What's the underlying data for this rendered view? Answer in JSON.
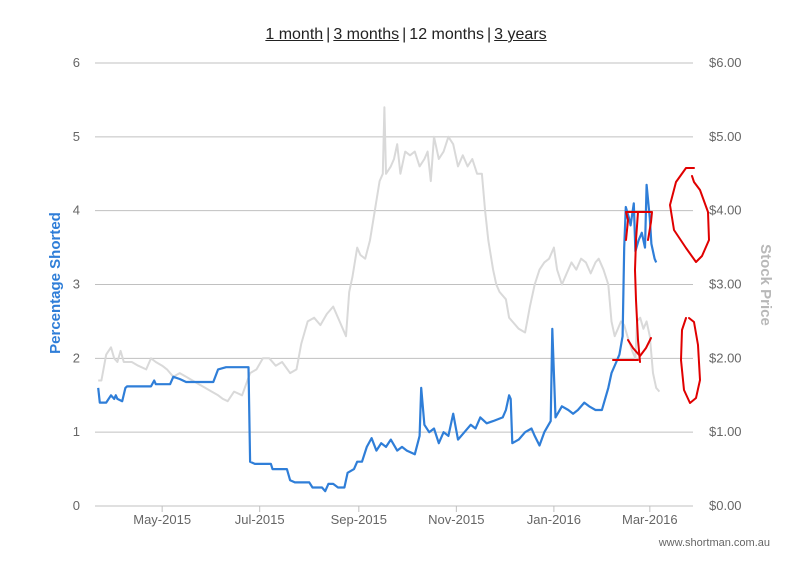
{
  "range_selector": {
    "options": [
      {
        "label": "1 month",
        "active": false
      },
      {
        "label": "3 months",
        "active": false
      },
      {
        "label": "12 months",
        "active": true
      },
      {
        "label": "3 years",
        "active": false
      }
    ],
    "separator": "|"
  },
  "credit": "www.shortman.com.au",
  "colors": {
    "short_series": "#2f7ed8",
    "price_series": "#d9d9d9",
    "annotation": "#e00000",
    "grid": "#c0c0c0"
  },
  "chart_data": {
    "type": "line",
    "left_axis": {
      "label": "Percentage Shorted",
      "min": 0,
      "max": 6,
      "ticks": [
        {
          "value": 0,
          "label": "0"
        },
        {
          "value": 1,
          "label": "1"
        },
        {
          "value": 2,
          "label": "2"
        },
        {
          "value": 3,
          "label": "3"
        },
        {
          "value": 4,
          "label": "4"
        },
        {
          "value": 5,
          "label": "5"
        },
        {
          "value": 6,
          "label": "6"
        }
      ]
    },
    "right_axis": {
      "label": "Stock Price",
      "min": 0,
      "max": 6,
      "ticks": [
        {
          "value": 0,
          "label": "$0.00"
        },
        {
          "value": 1,
          "label": "$1.00"
        },
        {
          "value": 2,
          "label": "$2.00"
        },
        {
          "value": 3,
          "label": "$3.00"
        },
        {
          "value": 4,
          "label": "$4.00"
        },
        {
          "value": 5,
          "label": "$5.00"
        },
        {
          "value": 6,
          "label": "$6.00"
        }
      ]
    },
    "x_axis": {
      "min": "2015-03-20",
      "max": "2016-03-28",
      "ticks": [
        {
          "date": "2015-05-01",
          "label": "May-2015"
        },
        {
          "date": "2015-07-01",
          "label": "Jul-2015"
        },
        {
          "date": "2015-09-01",
          "label": "Sep-2015"
        },
        {
          "date": "2015-11-01",
          "label": "Nov-2015"
        },
        {
          "date": "2016-01-01",
          "label": "Jan-2016"
        },
        {
          "date": "2016-03-01",
          "label": "Mar-2016"
        }
      ]
    },
    "grid": "horizontal",
    "series": [
      {
        "key": "short",
        "axis": "left",
        "points": [
          [
            "2015-03-22",
            1.6
          ],
          [
            "2015-03-23",
            1.4
          ],
          [
            "2015-03-27",
            1.4
          ],
          [
            "2015-03-30",
            1.5
          ],
          [
            "2015-04-01",
            1.45
          ],
          [
            "2015-04-02",
            1.5
          ],
          [
            "2015-04-03",
            1.45
          ],
          [
            "2015-04-06",
            1.42
          ],
          [
            "2015-04-08",
            1.6
          ],
          [
            "2015-04-09",
            1.62
          ],
          [
            "2015-04-24",
            1.62
          ],
          [
            "2015-04-26",
            1.7
          ],
          [
            "2015-04-27",
            1.65
          ],
          [
            "2015-05-01",
            1.65
          ],
          [
            "2015-05-06",
            1.65
          ],
          [
            "2015-05-08",
            1.75
          ],
          [
            "2015-05-12",
            1.72
          ],
          [
            "2015-05-16",
            1.68
          ],
          [
            "2015-06-02",
            1.68
          ],
          [
            "2015-06-05",
            1.85
          ],
          [
            "2015-06-10",
            1.88
          ],
          [
            "2015-06-24",
            1.88
          ],
          [
            "2015-06-25",
            0.6
          ],
          [
            "2015-06-28",
            0.57
          ],
          [
            "2015-07-08",
            0.57
          ],
          [
            "2015-07-09",
            0.5
          ],
          [
            "2015-07-18",
            0.5
          ],
          [
            "2015-07-20",
            0.35
          ],
          [
            "2015-07-23",
            0.32
          ],
          [
            "2015-08-01",
            0.32
          ],
          [
            "2015-08-03",
            0.25
          ],
          [
            "2015-08-09",
            0.25
          ],
          [
            "2015-08-11",
            0.2
          ],
          [
            "2015-08-13",
            0.3
          ],
          [
            "2015-08-16",
            0.3
          ],
          [
            "2015-08-19",
            0.25
          ],
          [
            "2015-08-23",
            0.25
          ],
          [
            "2015-08-25",
            0.45
          ],
          [
            "2015-08-29",
            0.5
          ],
          [
            "2015-08-31",
            0.6
          ],
          [
            "2015-09-03",
            0.6
          ],
          [
            "2015-09-06",
            0.8
          ],
          [
            "2015-09-09",
            0.92
          ],
          [
            "2015-09-12",
            0.75
          ],
          [
            "2015-09-15",
            0.85
          ],
          [
            "2015-09-18",
            0.8
          ],
          [
            "2015-09-21",
            0.9
          ],
          [
            "2015-09-25",
            0.75
          ],
          [
            "2015-09-28",
            0.8
          ],
          [
            "2015-10-01",
            0.75
          ],
          [
            "2015-10-06",
            0.7
          ],
          [
            "2015-10-09",
            0.95
          ],
          [
            "2015-10-10",
            1.6
          ],
          [
            "2015-10-12",
            1.1
          ],
          [
            "2015-10-15",
            1.0
          ],
          [
            "2015-10-18",
            1.05
          ],
          [
            "2015-10-21",
            0.85
          ],
          [
            "2015-10-24",
            1.0
          ],
          [
            "2015-10-27",
            0.95
          ],
          [
            "2015-10-30",
            1.25
          ],
          [
            "2015-11-02",
            0.9
          ],
          [
            "2015-11-06",
            1.0
          ],
          [
            "2015-11-10",
            1.1
          ],
          [
            "2015-11-13",
            1.05
          ],
          [
            "2015-11-16",
            1.2
          ],
          [
            "2015-11-20",
            1.12
          ],
          [
            "2015-11-24",
            1.15
          ],
          [
            "2015-11-30",
            1.2
          ],
          [
            "2015-12-02",
            1.3
          ],
          [
            "2015-12-04",
            1.5
          ],
          [
            "2015-12-05",
            1.45
          ],
          [
            "2015-12-06",
            0.85
          ],
          [
            "2015-12-10",
            0.9
          ],
          [
            "2015-12-14",
            1.0
          ],
          [
            "2015-12-18",
            1.05
          ],
          [
            "2015-12-20",
            0.95
          ],
          [
            "2015-12-23",
            0.82
          ],
          [
            "2015-12-26",
            1.0
          ],
          [
            "2015-12-30",
            1.15
          ],
          [
            "2015-12-31",
            2.4
          ],
          [
            "2016-01-02",
            1.2
          ],
          [
            "2016-01-06",
            1.35
          ],
          [
            "2016-01-10",
            1.3
          ],
          [
            "2016-01-13",
            1.25
          ],
          [
            "2016-01-16",
            1.3
          ],
          [
            "2016-01-20",
            1.4
          ],
          [
            "2016-01-23",
            1.35
          ],
          [
            "2016-01-27",
            1.3
          ],
          [
            "2016-01-31",
            1.3
          ],
          [
            "2016-02-02",
            1.45
          ],
          [
            "2016-02-04",
            1.6
          ],
          [
            "2016-02-06",
            1.8
          ],
          [
            "2016-02-09",
            1.95
          ],
          [
            "2016-02-11",
            2.05
          ],
          [
            "2016-02-13",
            2.3
          ],
          [
            "2016-02-14",
            3.5
          ],
          [
            "2016-02-15",
            4.05
          ],
          [
            "2016-02-17",
            3.9
          ],
          [
            "2016-02-18",
            3.8
          ],
          [
            "2016-02-20",
            4.1
          ],
          [
            "2016-02-21",
            3.45
          ],
          [
            "2016-02-23",
            3.6
          ],
          [
            "2016-02-25",
            3.7
          ],
          [
            "2016-02-27",
            3.5
          ],
          [
            "2016-02-28",
            4.35
          ],
          [
            "2016-03-01",
            3.9
          ],
          [
            "2016-03-02",
            3.55
          ],
          [
            "2016-03-04",
            3.35
          ],
          [
            "2016-03-05",
            3.3
          ]
        ]
      },
      {
        "key": "price",
        "axis": "right",
        "points": [
          [
            "2015-03-22",
            1.7
          ],
          [
            "2015-03-24",
            1.7
          ],
          [
            "2015-03-27",
            2.05
          ],
          [
            "2015-03-30",
            2.15
          ],
          [
            "2015-04-01",
            2.0
          ],
          [
            "2015-04-03",
            1.95
          ],
          [
            "2015-04-05",
            2.1
          ],
          [
            "2015-04-07",
            1.95
          ],
          [
            "2015-04-12",
            1.95
          ],
          [
            "2015-04-16",
            1.9
          ],
          [
            "2015-04-21",
            1.85
          ],
          [
            "2015-04-24",
            2.0
          ],
          [
            "2015-04-27",
            1.95
          ],
          [
            "2015-05-01",
            1.9
          ],
          [
            "2015-05-04",
            1.85
          ],
          [
            "2015-05-08",
            1.75
          ],
          [
            "2015-05-12",
            1.8
          ],
          [
            "2015-05-16",
            1.75
          ],
          [
            "2015-05-20",
            1.7
          ],
          [
            "2015-05-24",
            1.65
          ],
          [
            "2015-05-28",
            1.6
          ],
          [
            "2015-06-01",
            1.55
          ],
          [
            "2015-06-05",
            1.5
          ],
          [
            "2015-06-08",
            1.45
          ],
          [
            "2015-06-11",
            1.42
          ],
          [
            "2015-06-15",
            1.55
          ],
          [
            "2015-06-20",
            1.5
          ],
          [
            "2015-06-25",
            1.8
          ],
          [
            "2015-06-29",
            1.85
          ],
          [
            "2015-07-03",
            2.0
          ],
          [
            "2015-07-07",
            2.0
          ],
          [
            "2015-07-11",
            1.9
          ],
          [
            "2015-07-15",
            1.95
          ],
          [
            "2015-07-20",
            1.8
          ],
          [
            "2015-07-24",
            1.85
          ],
          [
            "2015-07-27",
            2.2
          ],
          [
            "2015-07-31",
            2.5
          ],
          [
            "2015-08-04",
            2.55
          ],
          [
            "2015-08-08",
            2.45
          ],
          [
            "2015-08-12",
            2.6
          ],
          [
            "2015-08-16",
            2.7
          ],
          [
            "2015-08-20",
            2.5
          ],
          [
            "2015-08-24",
            2.3
          ],
          [
            "2015-08-26",
            2.9
          ],
          [
            "2015-08-28",
            3.1
          ],
          [
            "2015-08-31",
            3.5
          ],
          [
            "2015-09-02",
            3.4
          ],
          [
            "2015-09-05",
            3.35
          ],
          [
            "2015-09-08",
            3.6
          ],
          [
            "2015-09-11",
            4.0
          ],
          [
            "2015-09-14",
            4.4
          ],
          [
            "2015-09-16",
            4.5
          ],
          [
            "2015-09-17",
            5.4
          ],
          [
            "2015-09-18",
            4.5
          ],
          [
            "2015-09-21",
            4.6
          ],
          [
            "2015-09-23",
            4.7
          ],
          [
            "2015-09-25",
            4.9
          ],
          [
            "2015-09-27",
            4.5
          ],
          [
            "2015-09-30",
            4.8
          ],
          [
            "2015-10-03",
            4.75
          ],
          [
            "2015-10-06",
            4.8
          ],
          [
            "2015-10-09",
            4.6
          ],
          [
            "2015-10-12",
            4.7
          ],
          [
            "2015-10-14",
            4.8
          ],
          [
            "2015-10-16",
            4.4
          ],
          [
            "2015-10-18",
            5.0
          ],
          [
            "2015-10-21",
            4.7
          ],
          [
            "2015-10-24",
            4.8
          ],
          [
            "2015-10-27",
            5.0
          ],
          [
            "2015-10-30",
            4.9
          ],
          [
            "2015-11-02",
            4.6
          ],
          [
            "2015-11-05",
            4.75
          ],
          [
            "2015-11-08",
            4.6
          ],
          [
            "2015-11-11",
            4.7
          ],
          [
            "2015-11-14",
            4.5
          ],
          [
            "2015-11-17",
            4.5
          ],
          [
            "2015-11-19",
            4.0
          ],
          [
            "2015-11-21",
            3.6
          ],
          [
            "2015-11-24",
            3.2
          ],
          [
            "2015-11-26",
            3.0
          ],
          [
            "2015-11-28",
            2.9
          ],
          [
            "2015-12-02",
            2.8
          ],
          [
            "2015-12-04",
            2.55
          ],
          [
            "2015-12-06",
            2.5
          ],
          [
            "2015-12-10",
            2.4
          ],
          [
            "2015-12-14",
            2.35
          ],
          [
            "2015-12-17",
            2.7
          ],
          [
            "2015-12-20",
            3.0
          ],
          [
            "2015-12-23",
            3.2
          ],
          [
            "2015-12-26",
            3.3
          ],
          [
            "2015-12-29",
            3.35
          ],
          [
            "2016-01-01",
            3.5
          ],
          [
            "2016-01-03",
            3.2
          ],
          [
            "2016-01-06",
            3.0
          ],
          [
            "2016-01-09",
            3.15
          ],
          [
            "2016-01-12",
            3.3
          ],
          [
            "2016-01-15",
            3.2
          ],
          [
            "2016-01-18",
            3.35
          ],
          [
            "2016-01-21",
            3.3
          ],
          [
            "2016-01-24",
            3.15
          ],
          [
            "2016-01-27",
            3.3
          ],
          [
            "2016-01-29",
            3.35
          ],
          [
            "2016-02-01",
            3.2
          ],
          [
            "2016-02-04",
            3.0
          ],
          [
            "2016-02-06",
            2.5
          ],
          [
            "2016-02-08",
            2.3
          ],
          [
            "2016-02-10",
            2.4
          ],
          [
            "2016-02-12",
            2.5
          ],
          [
            "2016-02-14",
            2.45
          ],
          [
            "2016-02-16",
            2.3
          ],
          [
            "2016-02-19",
            2.1
          ],
          [
            "2016-02-21",
            2.0
          ],
          [
            "2016-02-22",
            2.5
          ],
          [
            "2016-02-24",
            2.55
          ],
          [
            "2016-02-26",
            2.4
          ],
          [
            "2016-02-28",
            2.5
          ],
          [
            "2016-03-01",
            2.3
          ],
          [
            "2016-03-03",
            1.8
          ],
          [
            "2016-03-05",
            1.6
          ],
          [
            "2016-03-07",
            1.55
          ]
        ]
      }
    ]
  }
}
